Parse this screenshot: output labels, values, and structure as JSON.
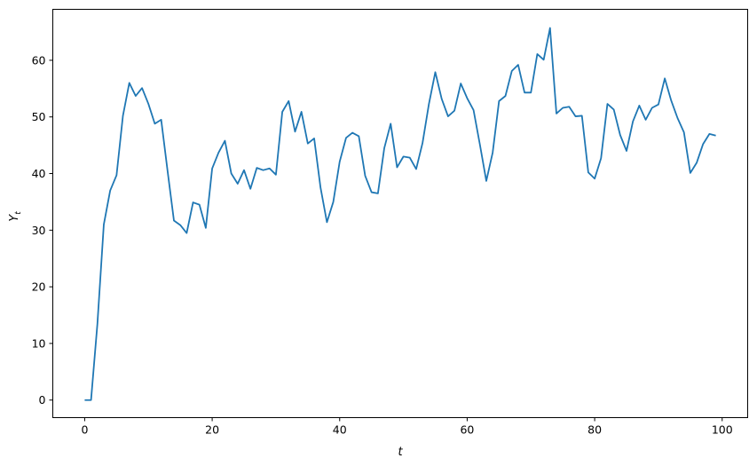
{
  "chart_data": {
    "type": "line",
    "title": "",
    "xlabel": "t",
    "ylabel": {
      "base": "Y",
      "sub": "t"
    },
    "xlim": [
      -5,
      104
    ],
    "ylim": [
      -3.1,
      69
    ],
    "xticks": [
      0,
      20,
      40,
      60,
      80,
      100
    ],
    "yticks": [
      0,
      10,
      20,
      30,
      40,
      50,
      60
    ],
    "grid": false,
    "color": "#1f77b4",
    "x_start": 0,
    "values": [
      0,
      0,
      13.5,
      31,
      37,
      39.7,
      50.2,
      56,
      53.7,
      55.1,
      52.3,
      48.8,
      49.5,
      40.5,
      31.7,
      30.9,
      29.5,
      34.9,
      34.5,
      30.4,
      40.9,
      43.7,
      45.8,
      40,
      38.2,
      40.6,
      37.3,
      41,
      40.6,
      40.9,
      39.8,
      50.9,
      52.8,
      47.4,
      50.9,
      45.3,
      46.2,
      37.5,
      31.4,
      35,
      42.1,
      46.3,
      47.2,
      46.6,
      39.6,
      36.7,
      36.5,
      44.5,
      48.8,
      41.1,
      43,
      42.8,
      40.8,
      45.4,
      52.3,
      57.9,
      53.2,
      50.1,
      51.1,
      55.9,
      53.3,
      51.2,
      45.1,
      38.7,
      43.7,
      52.8,
      53.7,
      58.1,
      59.2,
      54.3,
      54.3,
      61.1,
      60.1,
      65.7,
      50.6,
      51.6,
      51.8,
      50.1,
      50.2,
      40.2,
      39.1,
      42.7,
      52.3,
      51.3,
      46.8,
      44,
      49.2,
      52,
      49.5,
      51.6,
      52.2,
      56.8,
      52.9,
      49.8,
      47.3,
      40.1,
      41.9,
      45.2,
      47,
      46.7
    ]
  }
}
